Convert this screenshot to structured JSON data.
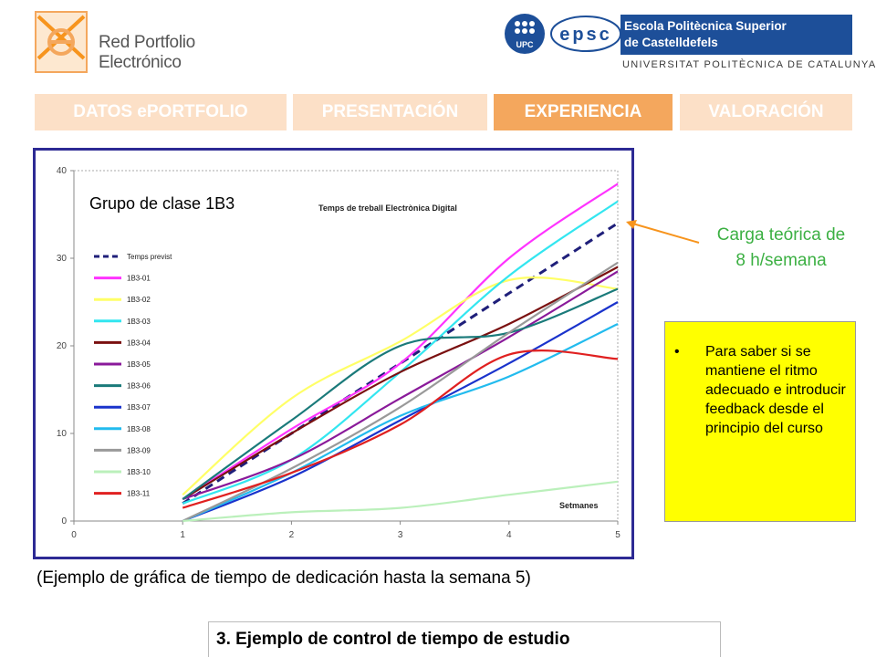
{
  "header": {
    "brand_left": "Red Portfolio Electrónico",
    "logo_upc": "UPC",
    "logo_epsc": "epsc",
    "school_line1": "Escola Politècnica Superior",
    "school_line2": "de Castelldefels",
    "university": "UNIVERSITAT POLITÈCNICA DE CATALUNYA"
  },
  "nav": {
    "tabs": [
      {
        "label": "DATOS ePORTFOLIO",
        "active": false
      },
      {
        "label": "PRESENTACIÓN",
        "active": false
      },
      {
        "label": "EXPERIENCIA",
        "active": true
      },
      {
        "label": "VALORACIÓN",
        "active": false
      }
    ]
  },
  "chart_overlay": {
    "group_label": "Grupo de clase 1B3"
  },
  "annotation": {
    "line1": "Carga teórica de",
    "line2": "8 h/semana",
    "arrow_color": "#f7941d"
  },
  "note": {
    "bullet": "•",
    "text": "Para saber si se mantiene el ritmo adecuado e introducir feedback desde el principio del curso"
  },
  "caption": "(Ejemplo de gráfica de tiempo de dedicación hasta la semana 5)",
  "footer": {
    "title": "3. Ejemplo de control de tiempo de estudio"
  },
  "chart_data": {
    "type": "line",
    "title": "Temps de treball Electrònica Digital",
    "xlabel": "Setmanes",
    "ylabel": "",
    "xlim": [
      0,
      5
    ],
    "ylim": [
      0,
      40
    ],
    "x_ticks": [
      0,
      1,
      2,
      3,
      4,
      5
    ],
    "y_ticks": [
      0,
      10,
      20,
      30,
      40
    ],
    "grid": false,
    "legend_position": "left",
    "x": [
      1,
      2,
      3,
      4,
      5
    ],
    "series": [
      {
        "name": "Temps previst",
        "values": [
          2,
          10,
          18,
          26,
          34
        ],
        "color": "#1f1f7a",
        "dashed": true
      },
      {
        "name": "1B3-01",
        "values": [
          2.5,
          10.5,
          18,
          30,
          38.5
        ],
        "color": "#ff33ff"
      },
      {
        "name": "1B3-02",
        "values": [
          3,
          14,
          20.5,
          27.5,
          26.5
        ],
        "color": "#ffff66"
      },
      {
        "name": "1B3-03",
        "values": [
          2,
          7,
          17,
          28,
          36.5
        ],
        "color": "#33e6f0"
      },
      {
        "name": "1B3-04",
        "values": [
          2.5,
          10,
          17,
          22.5,
          29
        ],
        "color": "#7a1010"
      },
      {
        "name": "1B3-05",
        "values": [
          2.5,
          7,
          14,
          21,
          28.5
        ],
        "color": "#8a1a9a"
      },
      {
        "name": "1B3-06",
        "values": [
          2.5,
          11.5,
          20,
          21.5,
          26.5
        ],
        "color": "#1a7a7a"
      },
      {
        "name": "1B3-07",
        "values": [
          0,
          5,
          11.5,
          18,
          25
        ],
        "color": "#1a33cc"
      },
      {
        "name": "1B3-08",
        "values": [
          0,
          5.5,
          12,
          16.5,
          22.5
        ],
        "color": "#22bbee"
      },
      {
        "name": "1B3-09",
        "values": [
          0,
          6,
          13,
          21.5,
          29.5
        ],
        "color": "#999999"
      },
      {
        "name": "1B3-10",
        "values": [
          0,
          1,
          1.5,
          3,
          4.5
        ],
        "color": "#bbf0bb"
      },
      {
        "name": "1B3-11",
        "values": [
          1.5,
          5.5,
          11,
          19,
          18.5
        ],
        "color": "#e02020"
      }
    ]
  }
}
